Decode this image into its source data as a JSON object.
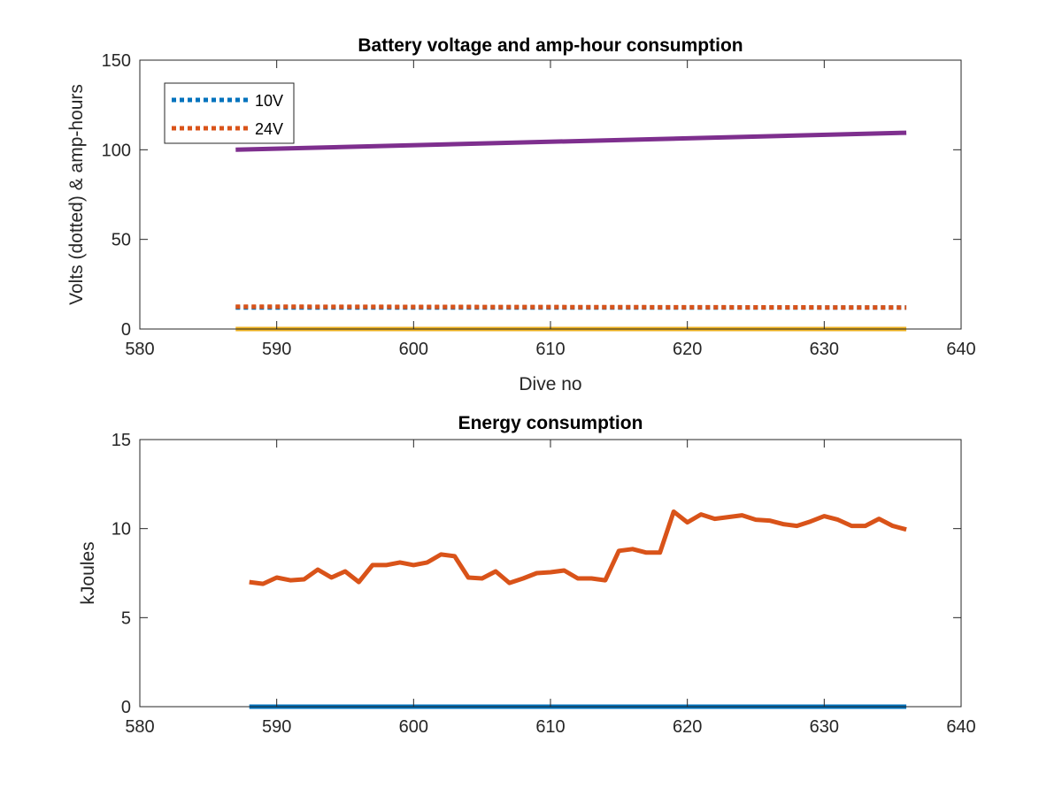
{
  "chart_data": [
    {
      "type": "line",
      "title": "Battery voltage and amp-hour consumption",
      "xlabel": "Dive no",
      "ylabel": "Volts (dotted) & amp-hours",
      "xlim": [
        580,
        640
      ],
      "ylim": [
        0,
        150
      ],
      "xticks": [
        "580",
        "590",
        "600",
        "610",
        "620",
        "630",
        "640"
      ],
      "yticks": [
        "0",
        "50",
        "100",
        "150"
      ],
      "legend_position": "top-left",
      "series": [
        {
          "name": "10V",
          "style": "dotted",
          "color": "#0072BD",
          "x": [
            587,
            636
          ],
          "y": [
            12,
            12
          ]
        },
        {
          "name": "24V",
          "style": "dotted",
          "color": "#D95319",
          "x": [
            587,
            636
          ],
          "y": [
            12.5,
            12
          ]
        },
        {
          "style": "solid",
          "color": "#7E2F8E",
          "x": [
            587,
            636
          ],
          "y": [
            100,
            109.5
          ]
        },
        {
          "style": "solid",
          "color": "#EDB120",
          "x": [
            587,
            636
          ],
          "y": [
            0,
            0
          ]
        }
      ]
    },
    {
      "type": "line",
      "title": "Energy consumption",
      "xlabel": "",
      "ylabel": "kJoules",
      "xlim": [
        580,
        640
      ],
      "ylim": [
        0,
        15
      ],
      "xticks": [
        "580",
        "590",
        "600",
        "610",
        "620",
        "630",
        "640"
      ],
      "yticks": [
        "0",
        "5",
        "10",
        "15"
      ],
      "series": [
        {
          "style": "solid",
          "color": "#D95319",
          "x": [
            588,
            589,
            590,
            591,
            592,
            593,
            594,
            595,
            596,
            597,
            598,
            599,
            600,
            601,
            602,
            603,
            604,
            605,
            606,
            607,
            608,
            609,
            610,
            611,
            612,
            613,
            614,
            615,
            616,
            617,
            618,
            619,
            620,
            621,
            622,
            623,
            624,
            625,
            626,
            627,
            628,
            629,
            630,
            631,
            632,
            633,
            634,
            635,
            636
          ],
          "y": [
            7.0,
            6.9,
            7.25,
            7.1,
            7.15,
            7.7,
            7.25,
            7.6,
            7.0,
            7.95,
            7.95,
            8.1,
            7.95,
            8.1,
            8.55,
            8.45,
            7.25,
            7.2,
            7.6,
            6.95,
            7.2,
            7.5,
            7.55,
            7.65,
            7.2,
            7.2,
            7.1,
            8.75,
            8.85,
            8.65,
            8.65,
            10.95,
            10.35,
            10.8,
            10.55,
            10.65,
            10.75,
            10.5,
            10.45,
            10.25,
            10.15,
            10.4,
            10.7,
            10.5,
            10.15,
            10.15,
            10.55,
            10.15,
            9.95
          ]
        },
        {
          "style": "solid",
          "color": "#0072BD",
          "x": [
            588,
            636
          ],
          "y": [
            0,
            0
          ]
        }
      ]
    }
  ]
}
